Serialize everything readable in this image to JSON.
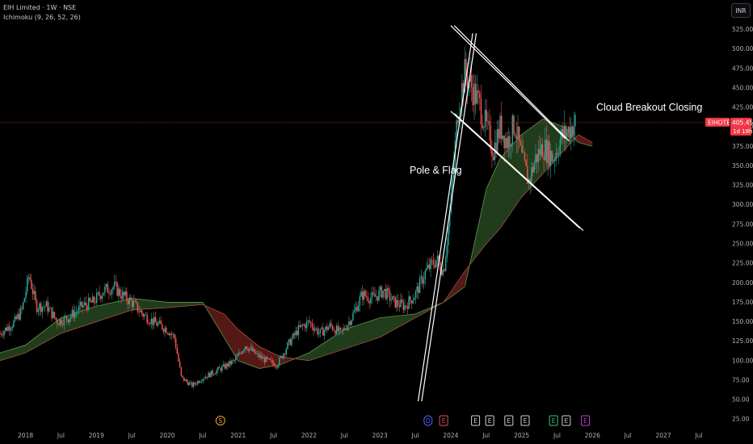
{
  "header": {
    "title": "EIH Limited · 1W · NSE",
    "indicator": "Ichimoku (9, 26, 52, 26)"
  },
  "currency_button": "INR",
  "price_tag": {
    "symbol": "EIHOTEL",
    "price": "405.45",
    "countdown": "1d 18h"
  },
  "annotations": {
    "pole_flag": "Pole & Flag",
    "cloud_breakout": "Cloud Breakout Closing"
  },
  "events": [
    {
      "label": "S",
      "color": "#f0a030",
      "date": 2020.75
    },
    {
      "label": "D",
      "color": "#5060ff",
      "date": 2023.68
    },
    {
      "label": "E",
      "color": "#e05060",
      "date": 2023.9
    },
    {
      "label": "E",
      "color": "#d0d0d0",
      "date": 2024.35
    },
    {
      "label": "E",
      "color": "#d0d0d0",
      "date": 2024.55
    },
    {
      "label": "E",
      "color": "#d0d0d0",
      "date": 2024.82
    },
    {
      "label": "E",
      "color": "#d0d0d0",
      "date": 2025.05
    },
    {
      "label": "E",
      "color": "#40c080",
      "date": 2025.45
    },
    {
      "label": "E",
      "color": "#d0d0d0",
      "date": 2025.63
    },
    {
      "label": "E",
      "color": "#c040c0",
      "date": 2025.9
    }
  ],
  "chart_data": {
    "type": "candlestick",
    "title": "EIH Limited · 1W · NSE",
    "x_ticks": [
      {
        "label": "2018",
        "t": 2018.0
      },
      {
        "label": "Jul",
        "t": 2018.5
      },
      {
        "label": "2019",
        "t": 2019.0
      },
      {
        "label": "Jul",
        "t": 2019.5
      },
      {
        "label": "2020",
        "t": 2020.0
      },
      {
        "label": "Jul",
        "t": 2020.5
      },
      {
        "label": "2021",
        "t": 2021.0
      },
      {
        "label": "Jul",
        "t": 2021.5
      },
      {
        "label": "2022",
        "t": 2022.0
      },
      {
        "label": "Jul",
        "t": 2022.5
      },
      {
        "label": "2023",
        "t": 2023.0
      },
      {
        "label": "Jul",
        "t": 2023.5
      },
      {
        "label": "2024",
        "t": 2024.0
      },
      {
        "label": "Jul",
        "t": 2024.5
      },
      {
        "label": "2025",
        "t": 2025.0
      },
      {
        "label": "Jul",
        "t": 2025.5
      },
      {
        "label": "2026",
        "t": 2026.0
      },
      {
        "label": "Jul",
        "t": 2026.5
      },
      {
        "label": "2027",
        "t": 2027.0
      },
      {
        "label": "Jul",
        "t": 2027.5
      }
    ],
    "y_ticks": [
      25,
      50,
      75,
      100,
      125,
      150,
      175,
      200,
      225,
      250,
      275,
      300,
      325,
      350,
      375,
      400,
      425,
      450,
      475,
      500,
      525
    ],
    "ylim": [
      19,
      540
    ],
    "xlim": [
      2017.64,
      2027.9
    ],
    "last_price": 405.45,
    "price_path": [
      [
        2017.64,
        135
      ],
      [
        2017.85,
        150
      ],
      [
        2017.95,
        165
      ],
      [
        2018.05,
        210
      ],
      [
        2018.15,
        170
      ],
      [
        2018.3,
        170
      ],
      [
        2018.45,
        150
      ],
      [
        2018.6,
        155
      ],
      [
        2018.8,
        170
      ],
      [
        2018.95,
        175
      ],
      [
        2019.1,
        190
      ],
      [
        2019.25,
        195
      ],
      [
        2019.35,
        185
      ],
      [
        2019.5,
        175
      ],
      [
        2019.65,
        160
      ],
      [
        2019.8,
        150
      ],
      [
        2020.0,
        140
      ],
      [
        2020.1,
        130
      ],
      [
        2020.2,
        78
      ],
      [
        2020.35,
        68
      ],
      [
        2020.5,
        78
      ],
      [
        2020.65,
        85
      ],
      [
        2020.8,
        92
      ],
      [
        2020.95,
        100
      ],
      [
        2021.1,
        120
      ],
      [
        2021.25,
        108
      ],
      [
        2021.4,
        100
      ],
      [
        2021.55,
        95
      ],
      [
        2021.7,
        120
      ],
      [
        2021.85,
        140
      ],
      [
        2022.0,
        150
      ],
      [
        2022.15,
        135
      ],
      [
        2022.3,
        145
      ],
      [
        2022.45,
        135
      ],
      [
        2022.6,
        155
      ],
      [
        2022.75,
        185
      ],
      [
        2022.9,
        180
      ],
      [
        2023.05,
        190
      ],
      [
        2023.2,
        175
      ],
      [
        2023.35,
        170
      ],
      [
        2023.5,
        185
      ],
      [
        2023.65,
        215
      ],
      [
        2023.8,
        230
      ],
      [
        2023.9,
        215
      ],
      [
        2024.0,
        300
      ],
      [
        2024.1,
        420
      ],
      [
        2024.2,
        470
      ],
      [
        2024.3,
        450
      ],
      [
        2024.4,
        430
      ],
      [
        2024.5,
        400
      ],
      [
        2024.6,
        370
      ],
      [
        2024.7,
        400
      ],
      [
        2024.8,
        380
      ],
      [
        2024.9,
        405
      ],
      [
        2025.0,
        360
      ],
      [
        2025.1,
        330
      ],
      [
        2025.2,
        360
      ],
      [
        2025.3,
        375
      ],
      [
        2025.45,
        360
      ],
      [
        2025.55,
        385
      ],
      [
        2025.65,
        395
      ],
      [
        2025.75,
        405
      ]
    ],
    "ichimoku_span_a": [
      [
        2017.64,
        110
      ],
      [
        2018.0,
        120
      ],
      [
        2018.5,
        155
      ],
      [
        2019.0,
        170
      ],
      [
        2019.5,
        180
      ],
      [
        2020.0,
        175
      ],
      [
        2020.5,
        175
      ],
      [
        2020.8,
        130
      ],
      [
        2021.0,
        100
      ],
      [
        2021.3,
        90
      ],
      [
        2021.6,
        95
      ],
      [
        2022.0,
        110
      ],
      [
        2022.5,
        140
      ],
      [
        2023.0,
        155
      ],
      [
        2023.5,
        160
      ],
      [
        2023.9,
        175
      ],
      [
        2024.2,
        195
      ],
      [
        2024.5,
        320
      ],
      [
        2024.7,
        360
      ],
      [
        2025.0,
        390
      ],
      [
        2025.3,
        410
      ],
      [
        2025.6,
        400
      ],
      [
        2025.8,
        380
      ],
      [
        2026.0,
        375
      ]
    ],
    "ichimoku_span_b": [
      [
        2017.64,
        100
      ],
      [
        2018.0,
        110
      ],
      [
        2018.5,
        135
      ],
      [
        2019.0,
        150
      ],
      [
        2019.5,
        165
      ],
      [
        2020.0,
        168
      ],
      [
        2020.5,
        172
      ],
      [
        2020.8,
        160
      ],
      [
        2021.0,
        140
      ],
      [
        2021.3,
        118
      ],
      [
        2021.6,
        105
      ],
      [
        2022.0,
        100
      ],
      [
        2022.5,
        115
      ],
      [
        2023.0,
        130
      ],
      [
        2023.5,
        155
      ],
      [
        2023.9,
        175
      ],
      [
        2024.2,
        215
      ],
      [
        2024.5,
        250
      ],
      [
        2024.7,
        270
      ],
      [
        2025.0,
        310
      ],
      [
        2025.3,
        340
      ],
      [
        2025.6,
        370
      ],
      [
        2025.8,
        390
      ],
      [
        2026.0,
        380
      ]
    ],
    "drawings": {
      "pole_lines": [
        [
          [
            2023.54,
            48
          ],
          [
            2024.31,
            520
          ]
        ],
        [
          [
            2023.59,
            48
          ],
          [
            2024.36,
            520
          ]
        ]
      ],
      "flag_upper": [
        [
          [
            2024.0,
            530
          ],
          [
            2025.62,
            385
          ]
        ],
        [
          [
            2024.05,
            530
          ],
          [
            2025.67,
            382
          ]
        ]
      ],
      "flag_lower": [
        [
          [
            2024.0,
            420
          ],
          [
            2025.82,
            270
          ]
        ],
        [
          [
            2024.05,
            417
          ],
          [
            2025.87,
            267
          ]
        ]
      ]
    }
  }
}
